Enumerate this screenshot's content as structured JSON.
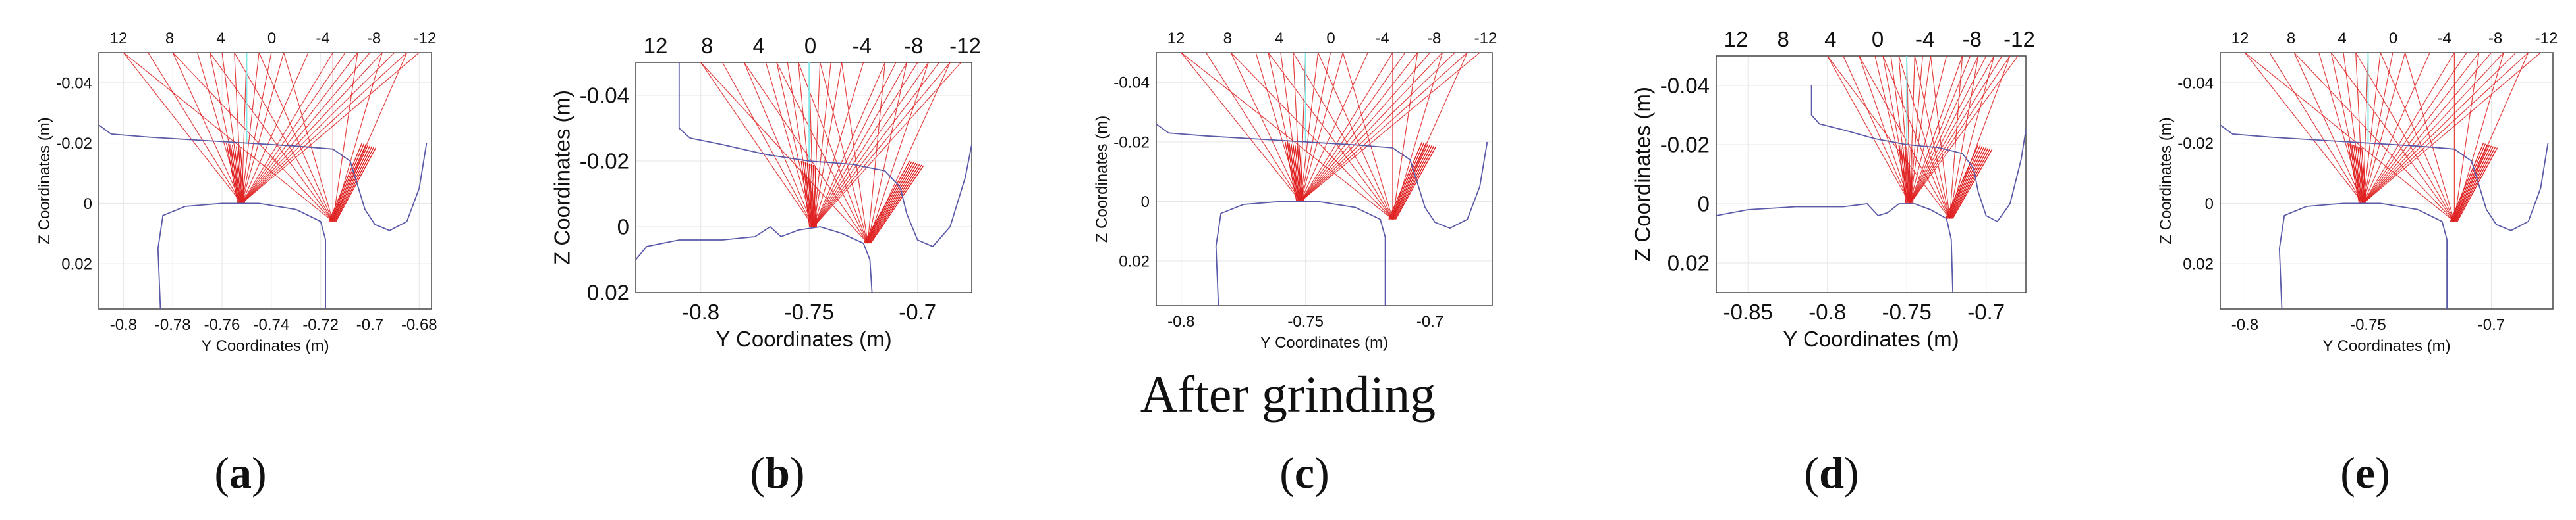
{
  "caption": "After grinding",
  "colors": {
    "ray": "#e02020",
    "profile": "#5a5aa8",
    "center_ray": "#7fe8e8",
    "grid": "#e6e6e6"
  },
  "chart_data": [
    {
      "type": "line",
      "label": "a",
      "open": "(",
      "close": ")",
      "xlabel": "Y Coordinates (m)",
      "ylabel": "Z Coordinates (m)",
      "xlim": [
        -0.81,
        -0.675
      ],
      "ylim": [
        -0.05,
        0.035
      ],
      "y_reversed": true,
      "xticks": [
        -0.8,
        -0.78,
        -0.76,
        -0.74,
        -0.72,
        -0.7,
        -0.68
      ],
      "xtick_labels": [
        "-0.8",
        "-0.78",
        "-0.76",
        "-0.74",
        "-0.72",
        "-0.7",
        "-0.68"
      ],
      "yticks": [
        -0.04,
        -0.02,
        0,
        0.02
      ],
      "ytick_labels": [
        "-0.04",
        "-0.02",
        "0",
        "0.02"
      ],
      "angle_labels": [
        "12",
        "8",
        "4",
        "0",
        "-4",
        "-8",
        "-12"
      ],
      "label_font": 24,
      "wheel_profile": [
        [
          -0.81,
          -0.026
        ],
        [
          -0.805,
          -0.023
        ],
        [
          -0.79,
          -0.022
        ],
        [
          -0.77,
          -0.021
        ],
        [
          -0.75,
          -0.02
        ],
        [
          -0.73,
          -0.019
        ],
        [
          -0.715,
          -0.018
        ],
        [
          -0.708,
          -0.014
        ],
        [
          -0.705,
          -0.006
        ],
        [
          -0.702,
          0.002
        ],
        [
          -0.698,
          0.007
        ],
        [
          -0.692,
          0.009
        ],
        [
          -0.685,
          0.006
        ],
        [
          -0.68,
          -0.005
        ],
        [
          -0.677,
          -0.02
        ]
      ],
      "rail_profile": [
        [
          -0.785,
          0.035
        ],
        [
          -0.786,
          0.015
        ],
        [
          -0.784,
          0.004
        ],
        [
          -0.775,
          0.001
        ],
        [
          -0.76,
          0.0
        ],
        [
          -0.745,
          0.0
        ],
        [
          -0.73,
          0.002
        ],
        [
          -0.72,
          0.006
        ],
        [
          -0.718,
          0.012
        ],
        [
          -0.718,
          0.035
        ]
      ],
      "contacts": [
        {
          "y": -0.752,
          "z": 0.0,
          "source_y": -0.755,
          "n": 18
        },
        {
          "y": -0.715,
          "z": 0.006,
          "source_y": -0.7,
          "n": 14
        }
      ],
      "ray_origins": [
        -0.8,
        -0.79,
        -0.78,
        -0.77,
        -0.765,
        -0.76,
        -0.755,
        -0.75,
        -0.745,
        -0.74,
        -0.735,
        -0.725,
        -0.715,
        -0.71,
        -0.705,
        -0.7,
        -0.695,
        -0.69,
        -0.685,
        -0.68
      ]
    },
    {
      "type": "line",
      "label": "b",
      "open": "(",
      "close": ")",
      "xlabel": "Y Coordinates (m)",
      "ylabel": "Z Coordinates (m)",
      "xlim": [
        -0.83,
        -0.675
      ],
      "ylim": [
        -0.05,
        0.02
      ],
      "y_reversed": true,
      "xticks": [
        -0.8,
        -0.75,
        -0.7
      ],
      "xtick_labels": [
        "-0.8",
        "-0.75",
        "-0.7"
      ],
      "yticks": [
        -0.04,
        -0.02,
        0,
        0.02
      ],
      "ytick_labels": [
        "-0.04",
        "-0.02",
        "0",
        "0.02"
      ],
      "angle_labels": [
        "12",
        "8",
        "4",
        "0",
        "-4",
        "-8",
        "-12"
      ],
      "label_font": 33,
      "wheel_profile": [
        [
          -0.81,
          -0.05
        ],
        [
          -0.81,
          -0.03
        ],
        [
          -0.805,
          -0.027
        ],
        [
          -0.79,
          -0.025
        ],
        [
          -0.77,
          -0.022
        ],
        [
          -0.75,
          -0.02
        ],
        [
          -0.73,
          -0.019
        ],
        [
          -0.715,
          -0.017
        ],
        [
          -0.708,
          -0.012
        ],
        [
          -0.705,
          -0.004
        ],
        [
          -0.7,
          0.004
        ],
        [
          -0.693,
          0.006
        ],
        [
          -0.685,
          0.0
        ],
        [
          -0.678,
          -0.015
        ],
        [
          -0.675,
          -0.025
        ]
      ],
      "rail_profile": [
        [
          -0.83,
          0.01
        ],
        [
          -0.825,
          0.006
        ],
        [
          -0.81,
          0.004
        ],
        [
          -0.79,
          0.004
        ],
        [
          -0.775,
          0.003
        ],
        [
          -0.768,
          0.0
        ],
        [
          -0.763,
          0.003
        ],
        [
          -0.755,
          0.001
        ],
        [
          -0.745,
          0.0
        ],
        [
          -0.735,
          0.002
        ],
        [
          -0.725,
          0.005
        ],
        [
          -0.722,
          0.01
        ],
        [
          -0.721,
          0.02
        ]
      ],
      "contacts": [
        {
          "y": -0.748,
          "z": 0.0,
          "source_y": -0.75,
          "n": 20
        },
        {
          "y": -0.723,
          "z": 0.005,
          "source_y": -0.7,
          "n": 14
        }
      ],
      "ray_origins": [
        -0.8,
        -0.79,
        -0.78,
        -0.77,
        -0.765,
        -0.76,
        -0.755,
        -0.75,
        -0.745,
        -0.74,
        -0.735,
        -0.725,
        -0.715,
        -0.71,
        -0.705,
        -0.7,
        -0.695,
        -0.69,
        -0.685,
        -0.68
      ]
    },
    {
      "type": "line",
      "label": "c",
      "open": "(",
      "close": ")",
      "xlabel": "Y Coordinates (m)",
      "ylabel": "Z Coordinates (m)",
      "xlim": [
        -0.81,
        -0.675
      ],
      "ylim": [
        -0.05,
        0.035
      ],
      "y_reversed": true,
      "xticks": [
        -0.8,
        -0.75,
        -0.7
      ],
      "xtick_labels": [
        "-0.8",
        "-0.75",
        "-0.7"
      ],
      "yticks": [
        -0.04,
        -0.02,
        0,
        0.02
      ],
      "ytick_labels": [
        "-0.04",
        "-0.02",
        "0",
        "0.02"
      ],
      "angle_labels": [
        "12",
        "8",
        "4",
        "0",
        "-4",
        "-8",
        "-12"
      ],
      "label_font": 24,
      "wheel_profile": [
        [
          -0.81,
          -0.026
        ],
        [
          -0.805,
          -0.023
        ],
        [
          -0.79,
          -0.022
        ],
        [
          -0.77,
          -0.021
        ],
        [
          -0.75,
          -0.02
        ],
        [
          -0.73,
          -0.019
        ],
        [
          -0.715,
          -0.018
        ],
        [
          -0.708,
          -0.014
        ],
        [
          -0.705,
          -0.006
        ],
        [
          -0.702,
          0.002
        ],
        [
          -0.698,
          0.007
        ],
        [
          -0.692,
          0.009
        ],
        [
          -0.685,
          0.006
        ],
        [
          -0.68,
          -0.005
        ],
        [
          -0.677,
          -0.02
        ]
      ],
      "rail_profile": [
        [
          -0.785,
          0.035
        ],
        [
          -0.786,
          0.015
        ],
        [
          -0.784,
          0.004
        ],
        [
          -0.775,
          0.001
        ],
        [
          -0.76,
          0.0
        ],
        [
          -0.745,
          0.0
        ],
        [
          -0.73,
          0.002
        ],
        [
          -0.72,
          0.006
        ],
        [
          -0.718,
          0.012
        ],
        [
          -0.718,
          0.035
        ]
      ],
      "contacts": [
        {
          "y": -0.752,
          "z": 0.0,
          "source_y": -0.755,
          "n": 18
        },
        {
          "y": -0.715,
          "z": 0.006,
          "source_y": -0.7,
          "n": 14
        }
      ],
      "ray_origins": [
        -0.8,
        -0.79,
        -0.78,
        -0.77,
        -0.765,
        -0.76,
        -0.755,
        -0.75,
        -0.745,
        -0.74,
        -0.735,
        -0.725,
        -0.715,
        -0.71,
        -0.705,
        -0.7,
        -0.695,
        -0.69,
        -0.685,
        -0.68
      ]
    },
    {
      "type": "line",
      "label": "d",
      "open": "(",
      "close": ")",
      "xlabel": "Y Coordinates (m)",
      "ylabel": "Z Coordinates (m)",
      "xlim": [
        -0.87,
        -0.675
      ],
      "ylim": [
        -0.05,
        0.03
      ],
      "y_reversed": true,
      "xticks": [
        -0.85,
        -0.8,
        -0.75,
        -0.7
      ],
      "xtick_labels": [
        "-0.85",
        "-0.8",
        "-0.75",
        "-0.7"
      ],
      "yticks": [
        -0.04,
        -0.02,
        0,
        0.02
      ],
      "ytick_labels": [
        "-0.04",
        "-0.02",
        "0",
        "0.02"
      ],
      "angle_labels": [
        "12",
        "8",
        "4",
        "0",
        "-4",
        "-8",
        "-12"
      ],
      "label_font": 33,
      "wheel_profile": [
        [
          -0.81,
          -0.04
        ],
        [
          -0.81,
          -0.03
        ],
        [
          -0.805,
          -0.027
        ],
        [
          -0.79,
          -0.025
        ],
        [
          -0.77,
          -0.022
        ],
        [
          -0.75,
          -0.02
        ],
        [
          -0.73,
          -0.019
        ],
        [
          -0.715,
          -0.017
        ],
        [
          -0.708,
          -0.012
        ],
        [
          -0.705,
          -0.004
        ],
        [
          -0.7,
          0.004
        ],
        [
          -0.693,
          0.006
        ],
        [
          -0.685,
          0.0
        ],
        [
          -0.678,
          -0.015
        ],
        [
          -0.675,
          -0.025
        ]
      ],
      "rail_profile": [
        [
          -0.87,
          0.004
        ],
        [
          -0.85,
          0.002
        ],
        [
          -0.82,
          0.001
        ],
        [
          -0.79,
          0.001
        ],
        [
          -0.775,
          0.0
        ],
        [
          -0.768,
          0.004
        ],
        [
          -0.762,
          0.003
        ],
        [
          -0.755,
          0.0
        ],
        [
          -0.745,
          0.0
        ],
        [
          -0.735,
          0.002
        ],
        [
          -0.725,
          0.005
        ],
        [
          -0.722,
          0.012
        ],
        [
          -0.721,
          0.03
        ]
      ],
      "contacts": [
        {
          "y": -0.748,
          "z": 0.0,
          "source_y": -0.75,
          "n": 20
        },
        {
          "y": -0.723,
          "z": 0.005,
          "source_y": -0.7,
          "n": 14
        }
      ],
      "ray_origins": [
        -0.8,
        -0.79,
        -0.78,
        -0.77,
        -0.765,
        -0.76,
        -0.755,
        -0.75,
        -0.745,
        -0.74,
        -0.735,
        -0.725,
        -0.715,
        -0.71,
        -0.705,
        -0.7,
        -0.695,
        -0.69,
        -0.685,
        -0.68
      ]
    },
    {
      "type": "line",
      "label": "e",
      "open": "(",
      "close": ")",
      "xlabel": "Y Coordinates (m)",
      "ylabel": "Z Coordinates (m)",
      "xlim": [
        -0.81,
        -0.675
      ],
      "ylim": [
        -0.05,
        0.035
      ],
      "y_reversed": true,
      "xticks": [
        -0.8,
        -0.75,
        -0.7
      ],
      "xtick_labels": [
        "-0.8",
        "-0.75",
        "-0.7"
      ],
      "yticks": [
        -0.04,
        -0.02,
        0,
        0.02
      ],
      "ytick_labels": [
        "-0.04",
        "-0.02",
        "0",
        "0.02"
      ],
      "angle_labels": [
        "12",
        "8",
        "4",
        "0",
        "-4",
        "-8",
        "-12"
      ],
      "label_font": 24,
      "wheel_profile": [
        [
          -0.81,
          -0.026
        ],
        [
          -0.805,
          -0.023
        ],
        [
          -0.79,
          -0.022
        ],
        [
          -0.77,
          -0.021
        ],
        [
          -0.75,
          -0.02
        ],
        [
          -0.73,
          -0.019
        ],
        [
          -0.715,
          -0.018
        ],
        [
          -0.708,
          -0.014
        ],
        [
          -0.705,
          -0.006
        ],
        [
          -0.702,
          0.002
        ],
        [
          -0.698,
          0.007
        ],
        [
          -0.692,
          0.009
        ],
        [
          -0.685,
          0.006
        ],
        [
          -0.68,
          -0.005
        ],
        [
          -0.677,
          -0.02
        ]
      ],
      "rail_profile": [
        [
          -0.785,
          0.035
        ],
        [
          -0.786,
          0.015
        ],
        [
          -0.784,
          0.004
        ],
        [
          -0.775,
          0.001
        ],
        [
          -0.76,
          0.0
        ],
        [
          -0.745,
          0.0
        ],
        [
          -0.73,
          0.002
        ],
        [
          -0.72,
          0.006
        ],
        [
          -0.718,
          0.012
        ],
        [
          -0.718,
          0.035
        ]
      ],
      "contacts": [
        {
          "y": -0.752,
          "z": 0.0,
          "source_y": -0.755,
          "n": 18
        },
        {
          "y": -0.715,
          "z": 0.006,
          "source_y": -0.7,
          "n": 14
        }
      ],
      "ray_origins": [
        -0.8,
        -0.79,
        -0.78,
        -0.77,
        -0.765,
        -0.76,
        -0.755,
        -0.75,
        -0.745,
        -0.74,
        -0.735,
        -0.725,
        -0.715,
        -0.71,
        -0.705,
        -0.7,
        -0.695,
        -0.69,
        -0.685,
        -0.68
      ]
    }
  ]
}
